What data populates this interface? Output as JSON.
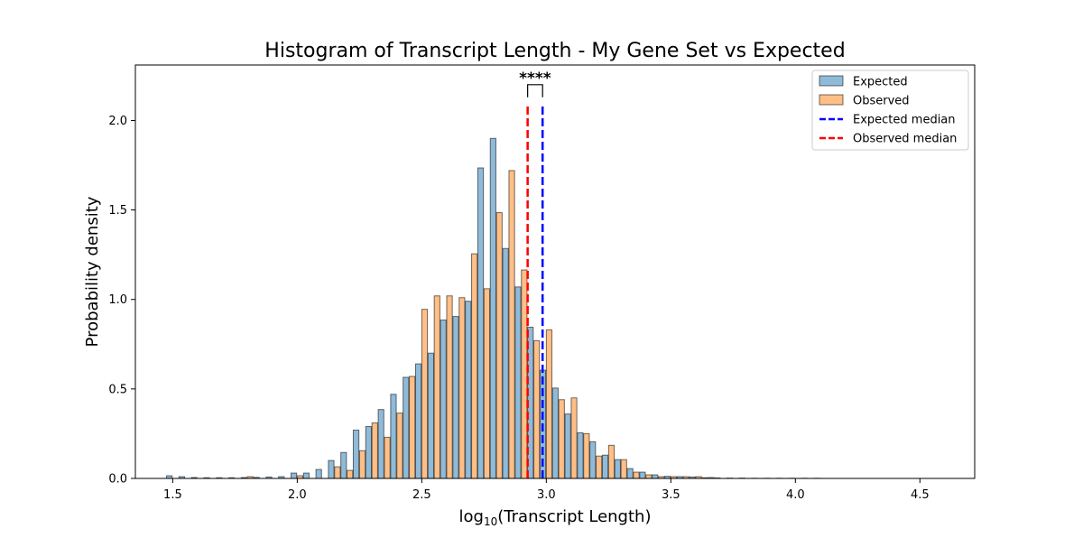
{
  "chart_data": {
    "type": "bar",
    "title": "Histogram of Transcript Length - My Gene Set vs Expected",
    "xlabel_base": "log",
    "xlabel_sub": "10",
    "xlabel_rest": "(Transcript Length)",
    "ylabel": "Probability density",
    "xlim": [
      1.35,
      4.72
    ],
    "ylim": [
      0,
      2.31
    ],
    "xticks": [
      "1.5",
      "2.0",
      "2.5",
      "3.0",
      "3.5",
      "4.0",
      "4.5"
    ],
    "yticks": [
      "0.0",
      "0.5",
      "1.0",
      "1.5",
      "2.0"
    ],
    "xtick_values": [
      1.5,
      2.0,
      2.5,
      3.0,
      3.5,
      4.0,
      4.5
    ],
    "ytick_values": [
      0.0,
      0.5,
      1.0,
      1.5,
      2.0
    ],
    "bin_width": 0.05,
    "bin_starts": [
      1.475,
      1.525,
      1.575,
      1.625,
      1.675,
      1.725,
      1.775,
      1.825,
      1.875,
      1.925,
      1.975,
      2.025,
      2.075,
      2.125,
      2.175,
      2.225,
      2.275,
      2.325,
      2.375,
      2.425,
      2.475,
      2.525,
      2.575,
      2.625,
      2.675,
      2.725,
      2.775,
      2.825,
      2.875,
      2.925,
      2.975,
      3.025,
      3.075,
      3.125,
      3.175,
      3.225,
      3.275,
      3.325,
      3.375,
      3.425,
      3.475,
      3.525,
      3.575,
      3.625,
      3.675,
      3.725,
      3.775,
      3.825,
      3.875,
      3.925,
      3.975,
      4.025,
      4.075
    ],
    "series": [
      {
        "name": "Expected",
        "color": "#1f77b4",
        "values": [
          0.015,
          0.01,
          0.005,
          0.004,
          0.004,
          0.004,
          0.005,
          0.006,
          0.008,
          0.01,
          0.03,
          0.03,
          0.05,
          0.1,
          0.145,
          0.27,
          0.29,
          0.385,
          0.47,
          0.565,
          0.64,
          0.7,
          0.885,
          0.905,
          0.99,
          1.735,
          1.9,
          1.285,
          1.07,
          0.845,
          0.605,
          0.505,
          0.36,
          0.255,
          0.205,
          0.13,
          0.105,
          0.055,
          0.035,
          0.02,
          0.012,
          0.01,
          0.008,
          0.004,
          0.003,
          0.002,
          0.002,
          0.001,
          0.001,
          0.001,
          0.001,
          0.001,
          0.001
        ]
      },
      {
        "name": "Observed",
        "color": "#ff7f0e",
        "values": [
          0,
          0,
          0,
          0,
          0,
          0,
          0.01,
          0,
          0,
          0,
          0.015,
          0,
          0,
          0.065,
          0.045,
          0.155,
          0.31,
          0.23,
          0.365,
          0.57,
          0.945,
          1.02,
          1.02,
          1.01,
          1.255,
          1.06,
          1.485,
          1.72,
          1.165,
          0.77,
          0.83,
          0.44,
          0.45,
          0.25,
          0.125,
          0.185,
          0.105,
          0.035,
          0.02,
          0.01,
          0.01,
          0.01,
          0.01,
          0.005,
          0,
          0,
          0,
          0,
          0,
          0,
          0,
          0,
          0
        ]
      }
    ],
    "medians": [
      {
        "name": "Expected median",
        "x": 2.985,
        "color": "#0000ff"
      },
      {
        "name": "Observed median",
        "x": 2.925,
        "color": "#ff0000"
      }
    ],
    "median_top": 2.09,
    "significance": {
      "label": "****",
      "bracket_top": 2.2,
      "bracket_bottom": 2.13
    },
    "legend": {
      "placement": "top-right",
      "items": [
        {
          "label": "Expected",
          "kind": "patch",
          "color": "#1f77b4"
        },
        {
          "label": "Observed",
          "kind": "patch",
          "color": "#ff7f0e"
        },
        {
          "label": "Expected median",
          "kind": "dash",
          "color": "#0000ff"
        },
        {
          "label": "Observed median",
          "kind": "dash",
          "color": "#ff0000"
        }
      ]
    }
  }
}
